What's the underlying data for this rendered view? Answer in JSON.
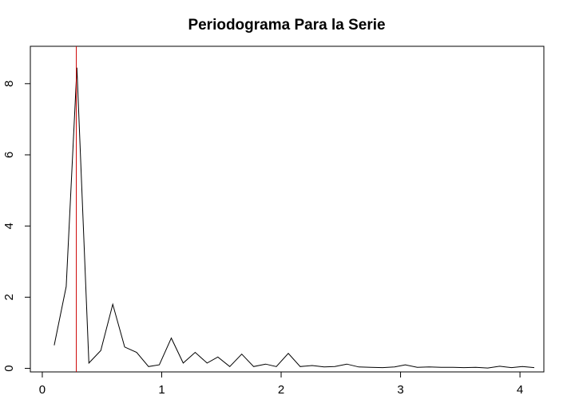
{
  "chart_data": {
    "type": "line",
    "title": "Periodograma Para la Serie",
    "xlabel": "",
    "ylabel": "",
    "xlim": [
      -0.1,
      4.2
    ],
    "ylim": [
      -0.1,
      9.05
    ],
    "x_ticks": [
      0,
      1,
      2,
      3,
      4
    ],
    "x_tick_labels": [
      "0",
      "1",
      "2",
      "3",
      "4"
    ],
    "y_ticks": [
      0,
      2,
      4,
      6,
      8
    ],
    "y_tick_labels": [
      "0",
      "2",
      "4",
      "6",
      "8"
    ],
    "grid": false,
    "line_color": "#000000",
    "vline_color": "#cc0000",
    "vline_x": 0.285,
    "series": [
      {
        "x": [
          0.1,
          0.2,
          0.29,
          0.39,
          0.49,
          0.59,
          0.69,
          0.79,
          0.89,
          0.98,
          1.08,
          1.18,
          1.28,
          1.38,
          1.47,
          1.57,
          1.67,
          1.77,
          1.87,
          1.96,
          2.06,
          2.16,
          2.26,
          2.36,
          2.45,
          2.55,
          2.65,
          2.75,
          2.85,
          2.95,
          3.04,
          3.14,
          3.24,
          3.34,
          3.44,
          3.53,
          3.63,
          3.73,
          3.83,
          3.93,
          4.02,
          4.12
        ],
        "values": [
          0.65,
          2.3,
          8.45,
          0.15,
          0.5,
          1.8,
          0.6,
          0.45,
          0.05,
          0.1,
          0.85,
          0.15,
          0.45,
          0.15,
          0.32,
          0.05,
          0.4,
          0.05,
          0.12,
          0.05,
          0.42,
          0.05,
          0.08,
          0.04,
          0.05,
          0.12,
          0.04,
          0.03,
          0.02,
          0.04,
          0.1,
          0.03,
          0.04,
          0.03,
          0.03,
          0.02,
          0.03,
          0.01,
          0.06,
          0.02,
          0.05,
          0.02
        ]
      }
    ]
  }
}
